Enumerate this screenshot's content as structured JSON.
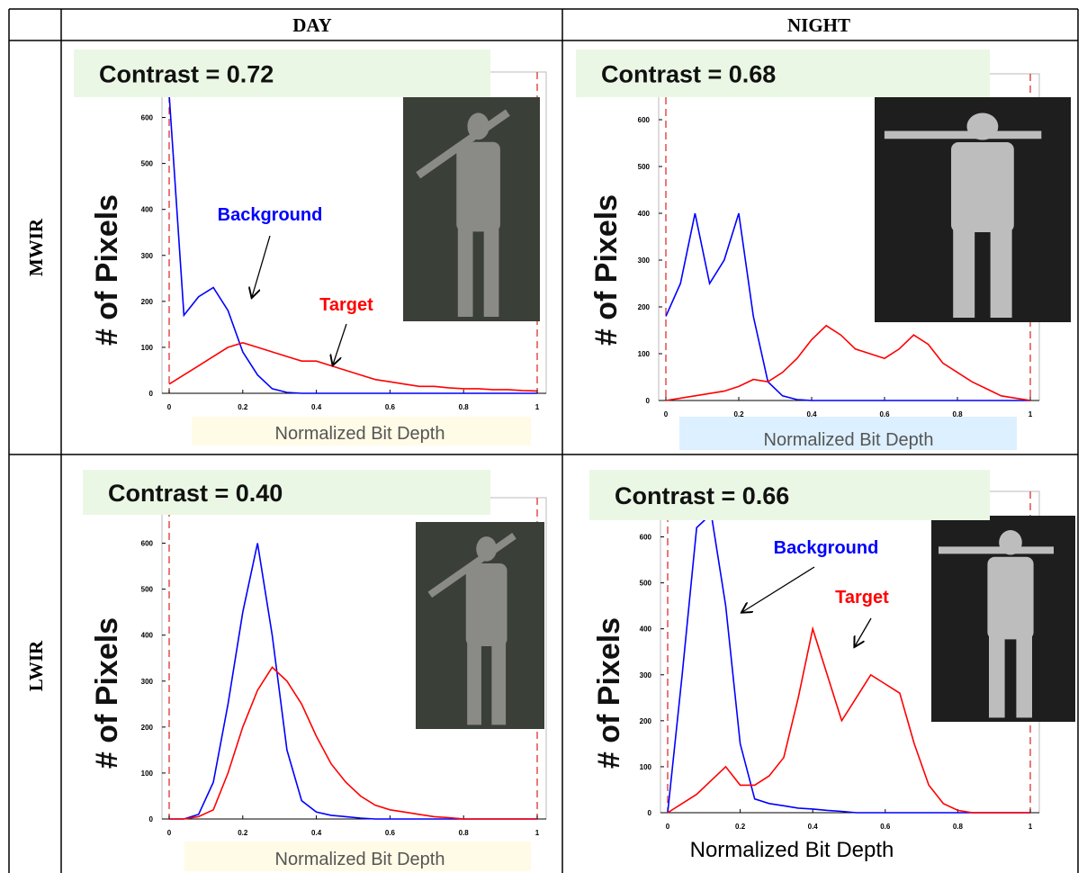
{
  "table": {
    "columns": [
      "DAY",
      "NIGHT"
    ],
    "rows": [
      "MWIR",
      "LWIR"
    ]
  },
  "chart_data": [
    {
      "type": "line",
      "annotation": "Contrast = 0.72",
      "y_label": "# of Pixels",
      "x_label": "Normalized Bit Depth",
      "x": [
        0,
        0.04,
        0.08,
        0.12,
        0.16,
        0.2,
        0.24,
        0.28,
        0.32,
        0.36,
        0.4,
        0.44,
        0.48,
        0.52,
        0.56,
        0.6,
        0.64,
        0.68,
        0.72,
        0.76,
        0.8,
        0.84,
        0.88,
        0.92,
        0.96,
        1
      ],
      "series": [
        {
          "name": "Background",
          "color": "#0000ff",
          "values": [
            650,
            170,
            210,
            230,
            180,
            90,
            40,
            10,
            2,
            0,
            0,
            0,
            0,
            0,
            0,
            0,
            0,
            0,
            0,
            0,
            0,
            0,
            0,
            0,
            0,
            0
          ]
        },
        {
          "name": "Target",
          "color": "#ff0000",
          "values": [
            20,
            40,
            60,
            80,
            100,
            110,
            100,
            90,
            80,
            70,
            70,
            60,
            50,
            40,
            30,
            25,
            20,
            15,
            15,
            12,
            10,
            10,
            8,
            8,
            6,
            5
          ]
        }
      ],
      "xlim": [
        0,
        1
      ],
      "ylim": [
        0,
        650
      ],
      "xticks": [
        0,
        0.2,
        0.4,
        0.6,
        0.8,
        1
      ],
      "yticks": [
        0,
        100,
        200,
        300,
        400,
        500,
        600
      ]
    },
    {
      "type": "line",
      "annotation": "Contrast = 0.68",
      "y_label": "# of Pixels",
      "x_label": "Normalized Bit Depth",
      "x": [
        0,
        0.04,
        0.08,
        0.12,
        0.16,
        0.2,
        0.24,
        0.28,
        0.32,
        0.36,
        0.4,
        0.44,
        0.48,
        0.52,
        0.56,
        0.6,
        0.64,
        0.68,
        0.72,
        0.76,
        0.8,
        0.84,
        0.88,
        0.92,
        0.96,
        1
      ],
      "series": [
        {
          "color": "#0000ff",
          "values": [
            180,
            250,
            400,
            250,
            300,
            400,
            180,
            40,
            10,
            2,
            0,
            0,
            0,
            0,
            0,
            0,
            0,
            0,
            0,
            0,
            0,
            0,
            0,
            0,
            0,
            0
          ]
        },
        {
          "color": "#ff0000",
          "values": [
            0,
            5,
            10,
            15,
            20,
            30,
            45,
            40,
            60,
            90,
            130,
            160,
            140,
            110,
            100,
            90,
            110,
            140,
            120,
            80,
            60,
            40,
            25,
            10,
            5,
            0
          ]
        }
      ],
      "xlim": [
        0,
        1
      ],
      "ylim": [
        0,
        650
      ],
      "xticks": [
        0,
        0.2,
        0.4,
        0.6,
        0.8,
        1
      ],
      "yticks": [
        0,
        100,
        200,
        300,
        400,
        500,
        600
      ]
    },
    {
      "type": "line",
      "annotation": "Contrast = 0.40",
      "y_label": "# of Pixels",
      "x_label": "Normalized Bit Depth",
      "x": [
        0,
        0.04,
        0.08,
        0.12,
        0.16,
        0.2,
        0.24,
        0.28,
        0.32,
        0.36,
        0.4,
        0.44,
        0.48,
        0.52,
        0.56,
        0.6,
        0.64,
        0.68,
        0.72,
        0.76,
        0.8,
        0.84,
        0.88,
        0.92,
        0.96,
        1
      ],
      "series": [
        {
          "color": "#0000ff",
          "values": [
            0,
            0,
            10,
            80,
            250,
            450,
            600,
            400,
            150,
            40,
            15,
            8,
            5,
            2,
            0,
            0,
            0,
            0,
            0,
            0,
            0,
            0,
            0,
            0,
            0,
            0
          ]
        },
        {
          "color": "#ff0000",
          "values": [
            0,
            0,
            5,
            20,
            100,
            200,
            280,
            330,
            300,
            250,
            180,
            120,
            80,
            50,
            30,
            20,
            15,
            10,
            5,
            3,
            0,
            0,
            0,
            0,
            0,
            0
          ]
        }
      ],
      "xlim": [
        0,
        1
      ],
      "ylim": [
        0,
        650
      ],
      "xticks": [
        0,
        0.2,
        0.4,
        0.6,
        0.8,
        1
      ],
      "yticks": [
        0,
        100,
        200,
        300,
        400,
        500,
        600
      ]
    },
    {
      "type": "line",
      "annotation": "Contrast = 0.66",
      "y_label": "# of Pixels",
      "x_label": "Normalized Bit Depth",
      "x": [
        0,
        0.04,
        0.08,
        0.12,
        0.16,
        0.2,
        0.24,
        0.28,
        0.32,
        0.36,
        0.4,
        0.44,
        0.48,
        0.52,
        0.56,
        0.6,
        0.64,
        0.68,
        0.72,
        0.76,
        0.8,
        0.84,
        0.88,
        0.92,
        0.96,
        1
      ],
      "series": [
        {
          "name": "Background",
          "color": "#0000ff",
          "values": [
            0,
            300,
            620,
            650,
            450,
            150,
            30,
            20,
            15,
            10,
            8,
            5,
            3,
            0,
            0,
            0,
            0,
            0,
            0,
            0,
            0,
            0,
            0,
            0,
            0,
            0
          ]
        },
        {
          "name": "Target",
          "color": "#ff0000",
          "values": [
            0,
            20,
            40,
            70,
            100,
            60,
            60,
            80,
            120,
            250,
            400,
            300,
            200,
            250,
            300,
            280,
            260,
            150,
            60,
            20,
            5,
            0,
            0,
            0,
            0,
            0
          ]
        }
      ],
      "xlim": [
        0,
        1
      ],
      "ylim": [
        0,
        650
      ],
      "xticks": [
        0,
        0.2,
        0.4,
        0.6,
        0.8,
        1
      ],
      "yticks": [
        0,
        100,
        200,
        300,
        400,
        500,
        600
      ]
    }
  ]
}
